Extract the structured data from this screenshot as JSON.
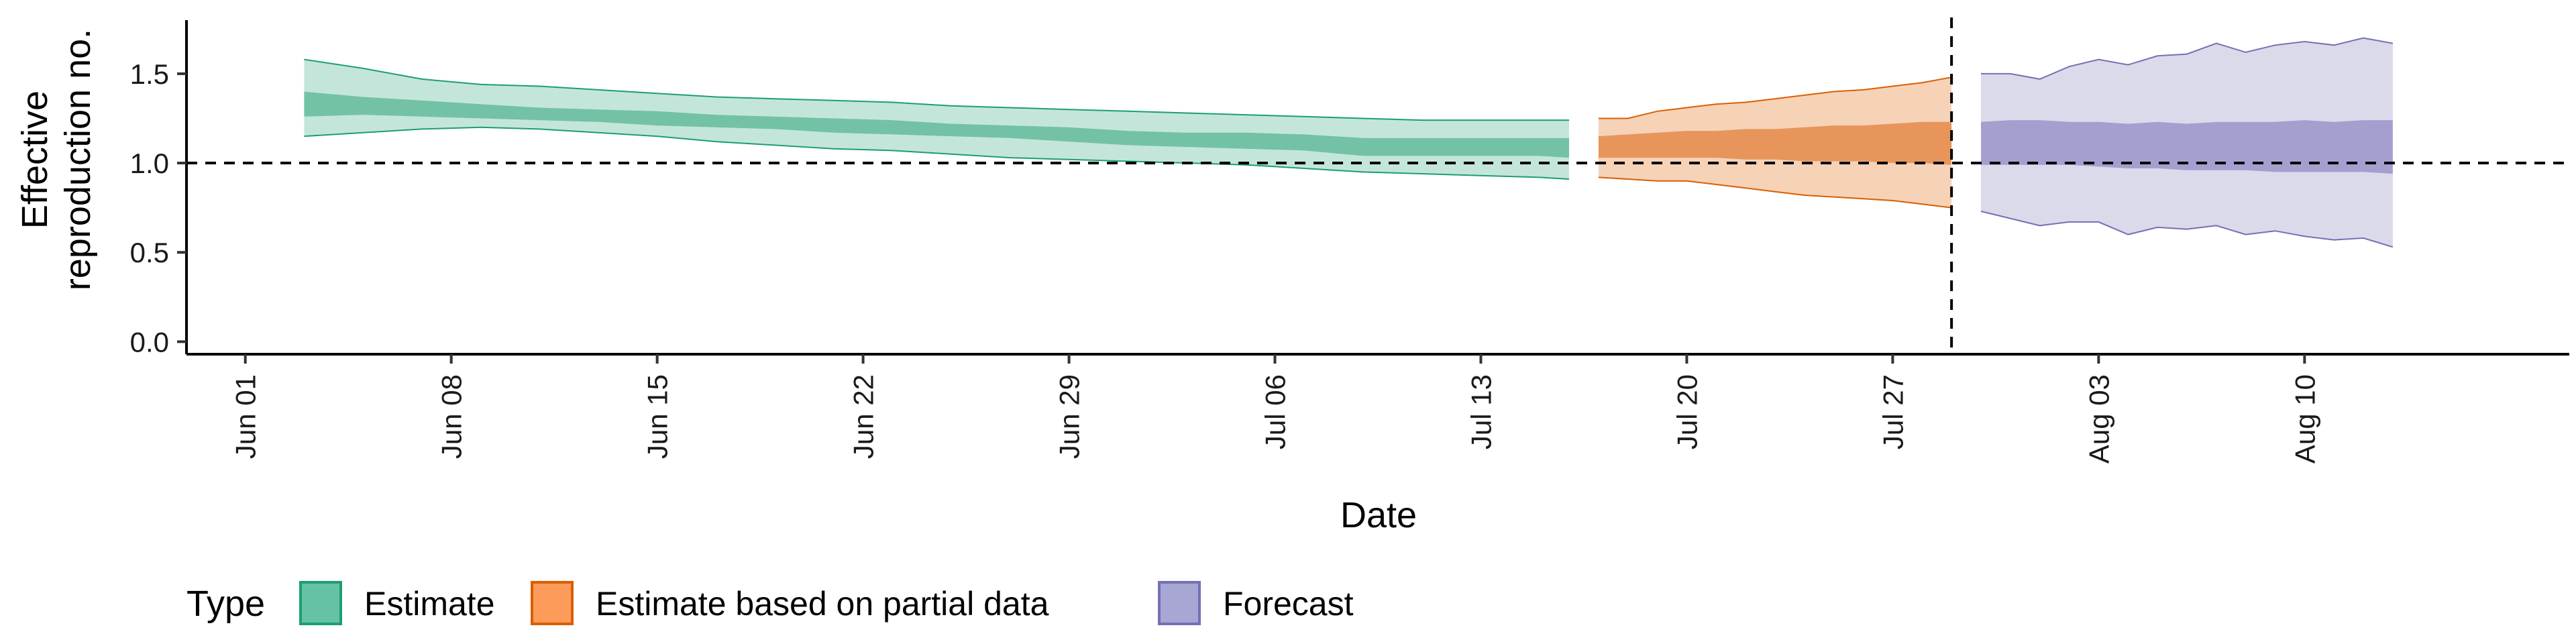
{
  "chart_data": {
    "type": "area",
    "xlabel": "Date",
    "ylabel_lines": [
      "Effective",
      "reproduction no."
    ],
    "x_ticks": [
      {
        "date": "2020-06-01",
        "label": "Jun 01"
      },
      {
        "date": "2020-06-08",
        "label": "Jun 08"
      },
      {
        "date": "2020-06-15",
        "label": "Jun 15"
      },
      {
        "date": "2020-06-22",
        "label": "Jun 22"
      },
      {
        "date": "2020-06-29",
        "label": "Jun 29"
      },
      {
        "date": "2020-07-06",
        "label": "Jul 06"
      },
      {
        "date": "2020-07-13",
        "label": "Jul 13"
      },
      {
        "date": "2020-07-20",
        "label": "Jul 20"
      },
      {
        "date": "2020-07-27",
        "label": "Jul 27"
      },
      {
        "date": "2020-08-03",
        "label": "Aug 03"
      },
      {
        "date": "2020-08-10",
        "label": "Aug 10"
      }
    ],
    "y_ticks": [
      {
        "value": 0,
        "label": "0.0"
      },
      {
        "value": 0.5,
        "label": "0.5"
      },
      {
        "value": 1.0,
        "label": "1.0"
      },
      {
        "value": 1.5,
        "label": "1.5"
      }
    ],
    "xlim": [
      "2020-05-30",
      "2020-08-19"
    ],
    "ylim": [
      -0.07,
      1.8
    ],
    "reference_line_y": 1.0,
    "vertical_line_date": "2020-07-29",
    "grid": false,
    "legend": {
      "title": "Type",
      "position": "bottom-left",
      "entries": [
        {
          "label": "Estimate",
          "fill": "#66c2a5",
          "stroke": "#1b9e77"
        },
        {
          "label": "Estimate based on partial data",
          "fill": "#fc9b5a",
          "stroke": "#d95f02"
        },
        {
          "label": "Forecast",
          "fill": "#a8a6d3",
          "stroke": "#7570b3"
        }
      ]
    },
    "series": [
      {
        "type_label": "Estimate",
        "outer_fill": "#c4e6da",
        "inner_fill": "#73c2a5",
        "stroke": "#1b9e77",
        "dates": [
          "2020-06-03",
          "2020-06-05",
          "2020-06-07",
          "2020-06-09",
          "2020-06-11",
          "2020-06-13",
          "2020-06-15",
          "2020-06-17",
          "2020-06-19",
          "2020-06-21",
          "2020-06-23",
          "2020-06-25",
          "2020-06-27",
          "2020-06-29",
          "2020-07-01",
          "2020-07-03",
          "2020-07-05",
          "2020-07-07",
          "2020-07-09",
          "2020-07-11",
          "2020-07-13",
          "2020-07-15",
          "2020-07-16"
        ],
        "upper90": [
          1.58,
          1.53,
          1.47,
          1.44,
          1.43,
          1.41,
          1.39,
          1.37,
          1.36,
          1.35,
          1.34,
          1.32,
          1.31,
          1.3,
          1.29,
          1.28,
          1.27,
          1.26,
          1.25,
          1.24,
          1.24,
          1.24,
          1.24
        ],
        "upper50": [
          1.4,
          1.37,
          1.35,
          1.33,
          1.31,
          1.3,
          1.29,
          1.27,
          1.26,
          1.25,
          1.24,
          1.22,
          1.21,
          1.2,
          1.18,
          1.17,
          1.17,
          1.16,
          1.14,
          1.14,
          1.14,
          1.14,
          1.14
        ],
        "lower50": [
          1.26,
          1.27,
          1.26,
          1.25,
          1.24,
          1.23,
          1.21,
          1.2,
          1.19,
          1.17,
          1.16,
          1.15,
          1.14,
          1.12,
          1.1,
          1.09,
          1.08,
          1.07,
          1.04,
          1.04,
          1.04,
          1.04,
          1.03
        ],
        "lower90": [
          1.15,
          1.17,
          1.19,
          1.2,
          1.19,
          1.17,
          1.15,
          1.12,
          1.1,
          1.08,
          1.07,
          1.05,
          1.03,
          1.02,
          1.01,
          1.0,
          0.99,
          0.97,
          0.95,
          0.94,
          0.93,
          0.92,
          0.91
        ]
      },
      {
        "type_label": "Estimate based on partial data",
        "outer_fill": "#f6d2b7",
        "inner_fill": "#e7955b",
        "stroke": "#d95f02",
        "dates": [
          "2020-07-17",
          "2020-07-18",
          "2020-07-19",
          "2020-07-20",
          "2020-07-21",
          "2020-07-22",
          "2020-07-23",
          "2020-07-24",
          "2020-07-25",
          "2020-07-26",
          "2020-07-27",
          "2020-07-28",
          "2020-07-29"
        ],
        "upper90": [
          1.25,
          1.25,
          1.29,
          1.31,
          1.33,
          1.34,
          1.36,
          1.38,
          1.4,
          1.41,
          1.43,
          1.45,
          1.48
        ],
        "upper50": [
          1.15,
          1.16,
          1.17,
          1.18,
          1.18,
          1.19,
          1.19,
          1.2,
          1.21,
          1.21,
          1.22,
          1.23,
          1.23
        ],
        "lower50": [
          1.03,
          1.03,
          1.03,
          1.03,
          1.03,
          1.02,
          1.02,
          1.01,
          1.01,
          1.01,
          1.0,
          1.0,
          0.99
        ],
        "lower90": [
          0.92,
          0.91,
          0.9,
          0.9,
          0.88,
          0.86,
          0.84,
          0.82,
          0.81,
          0.8,
          0.79,
          0.77,
          0.75
        ]
      },
      {
        "type_label": "Forecast",
        "outer_fill": "#dadaeb",
        "inner_fill": "#a59fd0",
        "stroke": "#7570b3",
        "dates": [
          "2020-07-30",
          "2020-07-31",
          "2020-08-01",
          "2020-08-02",
          "2020-08-03",
          "2020-08-04",
          "2020-08-05",
          "2020-08-06",
          "2020-08-07",
          "2020-08-08",
          "2020-08-09",
          "2020-08-10",
          "2020-08-11",
          "2020-08-12",
          "2020-08-13"
        ],
        "upper90": [
          1.5,
          1.5,
          1.47,
          1.54,
          1.58,
          1.55,
          1.6,
          1.61,
          1.67,
          1.62,
          1.66,
          1.68,
          1.66,
          1.7,
          1.67
        ],
        "upper50": [
          1.23,
          1.24,
          1.24,
          1.23,
          1.23,
          1.22,
          1.23,
          1.22,
          1.23,
          1.23,
          1.23,
          1.24,
          1.23,
          1.24,
          1.24
        ],
        "lower50": [
          0.99,
          0.99,
          0.99,
          0.99,
          0.98,
          0.97,
          0.97,
          0.96,
          0.96,
          0.96,
          0.95,
          0.95,
          0.95,
          0.95,
          0.94
        ],
        "lower90": [
          0.73,
          0.69,
          0.65,
          0.67,
          0.67,
          0.6,
          0.64,
          0.63,
          0.65,
          0.6,
          0.62,
          0.59,
          0.57,
          0.58,
          0.53
        ]
      }
    ]
  }
}
